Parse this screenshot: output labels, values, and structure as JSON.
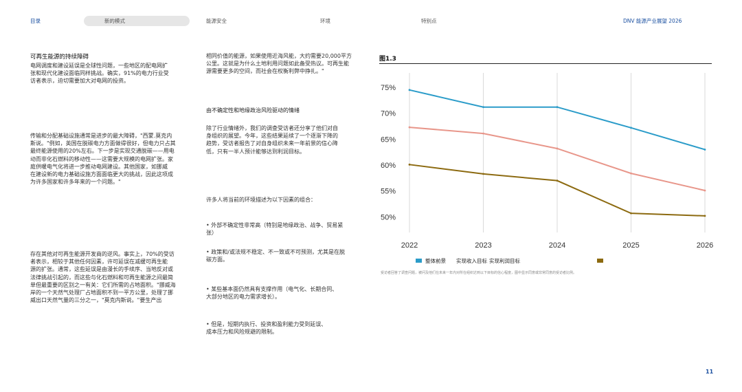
{
  "nav": {
    "contents": "目录",
    "active": "新的模式",
    "energy_security": "能源安全",
    "environment": "环境",
    "features": "特别点",
    "report_title": "DNV 能源产业展望 2026"
  },
  "col1": {
    "heading": "可再生能源的持续障碍",
    "p1": [
      "电网调度和建设延误是全球性问题，一些地区的配电网扩",
      "张和现代化建设面临同样挑战。确实，91%的电力行业受",
      "访者表示，迫切需要加大对电网的投资。"
    ],
    "p2": [
      "传输和分配基础设施通常是进步的最大障碍，\"西蒙.莫克内",
      "斯说。\"例如，英国在脱碳电力方面做得很好，但电力只占其",
      "最终能源使用的20%左右。下一步是实现交通脱碳——用电",
      "动而非化石燃料的移动性——这需要大规模的电网扩张。家",
      "庭供暖电气化将进一步推动电网建设。其他国家，如挪威",
      "在建设新的电力基础设施方面面临更大的挑战，因此这项成",
      "为许多国家和许多年来的一个问题。\""
    ],
    "p3": [
      "存在其他对可再生能源开发商的逆风。事实上，70%的受访",
      "者表示，相较于其他任何因素，许可延误在减缓可再生能",
      "源的扩张。通常，这些延误是由漫长的手续序、当地反对或",
      "法律挑战引起的，而这些与化石燃料和可再生能源之间最简",
      "单但最重要的区别之一有关：它们所需的占地面积。\"挪威海",
      "岸的一个天然气处理厂占地面积不到一平方公里，处理了挪",
      "威出口天然气量的三分之一，\"莫克内斯说。\"要生产出"
    ]
  },
  "col2": {
    "p1": [
      "相同价值的能源，如果使用近海风能，大约需要20,000平方",
      "公里。这就是为什么土地利用问题如此备受热议。可再生能",
      "源需要更多的空间，而社会在权衡利弊中挣扎。\""
    ],
    "subheading": "由不确定性和地缘政治风险驱动的情绪",
    "p2": [
      "除了行业情绪外，我们的调查受访者还分享了他们对自",
      "身组织的展望。今年，这些结果延续了一个逐渐下降的",
      "趋势，受访者报告了对自身组织未来一年前景的信心降",
      "低，只有一半人预计能够达到利润目标。"
    ],
    "p3": "许多人将当前的环境描述为以下因素的组合：",
    "bullets": [
      [
        "• 外部不确定性非常高（特别是地缘政治、战争、贸易紧",
        "张）"
      ],
      [
        "• 政策和/或法规不稳定、不一致或不可预测，尤其是在脱",
        "碳方面。"
      ],
      [
        "• 某些基本面仍然具有支撑作用（电气化、长期合同、",
        "大部分地区的电力需求增长）。"
      ],
      [
        "• 但是，短期内执行、投资和盈利能力受到延误、",
        "成本压力和风险规避的限制。"
      ]
    ]
  },
  "figure": {
    "label": "图1.3",
    "legend": {
      "blue_label": "整体前景",
      "red_label": "实现收入目标",
      "gold_label": "实现利润目标"
    },
    "footnote": "受访者回答了调查问题，被问及他们在未来一年内对所在组织达到以下目标的信心程度，图中显示同意或非常同意的受访者比例。",
    "page_number": "11"
  },
  "chart_data": {
    "type": "line",
    "x": [
      2022,
      2023,
      2024,
      2025,
      2026
    ],
    "xticks": [
      "2022",
      "2023",
      "2024",
      "2025",
      "2026"
    ],
    "yticks": [
      "75%",
      "70%",
      "65%",
      "60%",
      "55%",
      "50%"
    ],
    "ylim": [
      47,
      77
    ],
    "series": [
      {
        "name": "整体前景",
        "color": "#2b9cc9",
        "values": [
          74.5,
          71.2,
          71.2,
          67.2,
          63.0
        ]
      },
      {
        "name": "实现收入目标",
        "color": "#e8968a",
        "values": [
          67.3,
          66.1,
          63.2,
          58.4,
          55.1
        ]
      },
      {
        "name": "实现利润目标",
        "color": "#8c6a10",
        "values": [
          60.1,
          58.3,
          57.0,
          50.7,
          50.2
        ]
      }
    ],
    "grid": "vertical"
  }
}
